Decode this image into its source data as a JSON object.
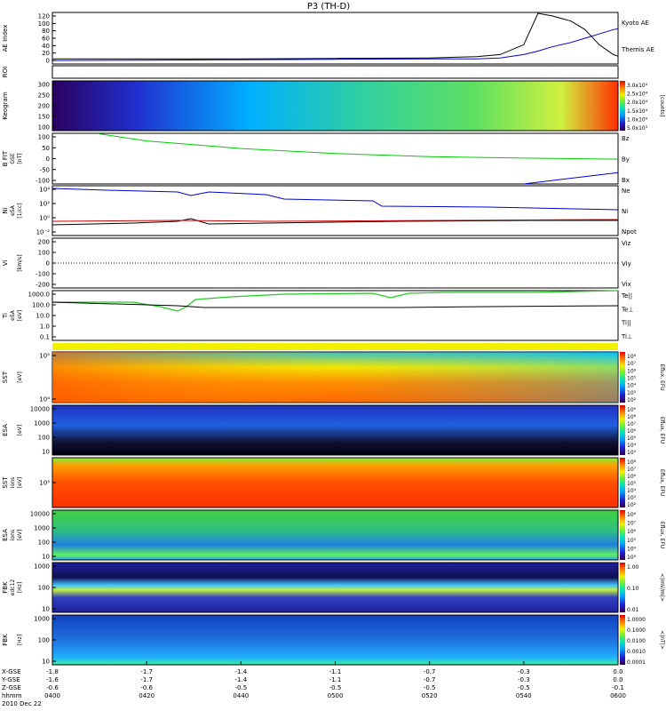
{
  "title": "P3 (TH-D)",
  "bottom_axis": {
    "rows": [
      {
        "label": "X-GSE",
        "values": [
          "-1.8",
          "-1.7",
          "-1.4",
          "-1.1",
          "-0.7",
          "-0.3",
          "0.0"
        ]
      },
      {
        "label": "Y-GSE",
        "values": [
          "-1.6",
          "-1.7",
          "-1.4",
          "-1.1",
          "-0.7",
          "-0.3",
          "0.0"
        ]
      },
      {
        "label": "Z-GSE",
        "values": [
          "-0.6",
          "-0.6",
          "-0.5",
          "-0.5",
          "-0.5",
          "-0.5",
          "-0.1"
        ]
      },
      {
        "label": "hhmm",
        "values": [
          "0400",
          "0420",
          "0440",
          "0500",
          "0520",
          "0540",
          "0600"
        ]
      }
    ],
    "date": "2010 Dec 22"
  },
  "chart_data": [
    {
      "type": "line",
      "id": "ae",
      "ylabel": "AE Index",
      "ylim": [
        0,
        120
      ],
      "yticks": [
        "120",
        "100",
        "80",
        "60",
        "40",
        "20",
        "0"
      ],
      "x": [
        0,
        20,
        40,
        60,
        80,
        90,
        95,
        100,
        103,
        106,
        110,
        113,
        116,
        119,
        120
      ],
      "series": [
        {
          "name": "Kyoto AE",
          "color": "#0000cc",
          "values": [
            8,
            9,
            10,
            11,
            12,
            12,
            14,
            22,
            30,
            40,
            50,
            60,
            70,
            80,
            82
          ]
        },
        {
          "name": "Themis AE",
          "color": "#000000",
          "values": [
            12,
            12,
            12,
            13,
            14,
            17,
            22,
            45,
            118,
            112,
            100,
            80,
            45,
            22,
            18
          ]
        }
      ]
    },
    {
      "type": "heatmap",
      "id": "roi",
      "ylabel": "ROI"
    },
    {
      "type": "heatmap",
      "id": "keogram",
      "ylabel": "Keogram",
      "yticks": [
        "300",
        "250",
        "200",
        "150",
        "100"
      ],
      "colorbar": {
        "label": "[counts]",
        "ticks": [
          "3.0x10⁴",
          "2.5x10⁴",
          "2.0x10⁴",
          "1.5x10⁴",
          "1.0x10⁴",
          "5.0x10³"
        ]
      }
    },
    {
      "type": "line",
      "id": "bfit",
      "ylabel": "B FIT",
      "ylabel2": "GSE",
      "units": "[nT]",
      "ylim": [
        -100,
        100
      ],
      "yticks": [
        "100",
        "50",
        "0",
        "-50",
        "-100"
      ],
      "x": [
        0,
        10,
        20,
        40,
        60,
        80,
        100,
        120
      ],
      "series": [
        {
          "name": "Bz",
          "color": "#cc0000",
          "values": [
            null,
            null,
            null,
            null,
            null,
            null,
            null,
            null
          ]
        },
        {
          "name": "By",
          "color": "#00cc00",
          "values": [
            null,
            98,
            70,
            40,
            20,
            8,
            2,
            -2
          ]
        },
        {
          "name": "Bx",
          "color": "#0000cc",
          "values": [
            null,
            null,
            null,
            null,
            null,
            null,
            -100,
            -55
          ]
        }
      ]
    },
    {
      "type": "line",
      "id": "ni",
      "ylabel": "Ni",
      "ylabel2": "eSA",
      "units": "[1/cc]",
      "yticks": [
        "10⁴",
        "10²",
        "10⁰",
        "10⁻²"
      ],
      "series": [
        {
          "name": "Ne",
          "color": "#cc0000"
        },
        {
          "name": "Ni",
          "color": "#000000"
        },
        {
          "name": "Npot",
          "color": "#0000cc"
        }
      ]
    },
    {
      "type": "line",
      "id": "vi",
      "ylabel": "Vi",
      "units": "[km/s]",
      "yticks": [
        "200",
        "100",
        "0",
        "-100",
        "-200"
      ],
      "series": [
        {
          "name": "Viz",
          "color": "#cc0000"
        },
        {
          "name": "Viy",
          "color": "#00cc00"
        },
        {
          "name": "Vix",
          "color": "#0000cc"
        }
      ]
    },
    {
      "type": "line",
      "id": "ti",
      "ylabel": "Ti",
      "ylabel2": "eSA",
      "units": "[eV]",
      "yticks": [
        "1000.0",
        "100.0",
        "10.0",
        "1.0",
        "0.1"
      ],
      "series": [
        {
          "name": "Te||",
          "color": "#000000"
        },
        {
          "name": "Te⊥",
          "color": "#cc0000"
        },
        {
          "name": "Ti||",
          "color": "#00cc00"
        },
        {
          "name": "Ti⊥",
          "color": "#0000cc"
        }
      ]
    },
    {
      "type": "heatmap",
      "id": "sst_e",
      "ylabel": "SST",
      "ylabel2": "",
      "units": "[eV]",
      "yticks": [
        "10⁵",
        "10⁴"
      ],
      "colorbar": {
        "label": "Eflux, EFU",
        "ticks": [
          "10⁸",
          "10⁷",
          "10⁶",
          "10⁵",
          "10⁴",
          "10³",
          "10²"
        ]
      }
    },
    {
      "type": "heatmap",
      "id": "esa_e",
      "ylabel": "ESA",
      "ylabel2": "",
      "units": "[eV]",
      "yticks": [
        "10000",
        "1000",
        "100",
        "10"
      ],
      "colorbar": {
        "label": "Eflux, EFU",
        "ticks": [
          "10⁹",
          "10⁸",
          "10⁷",
          "10⁶",
          "10⁵",
          "10⁴",
          "10³"
        ]
      }
    },
    {
      "type": "heatmap",
      "id": "sst_i",
      "ylabel": "SST",
      "ylabel2": "ions",
      "units": "[eV]",
      "yticks": [
        "10⁵"
      ],
      "colorbar": {
        "label": "Eflux, EFU",
        "ticks": [
          "10⁸",
          "10⁷",
          "10⁶",
          "10⁵",
          "10⁴",
          "10³",
          "10²"
        ]
      }
    },
    {
      "type": "heatmap",
      "id": "esa_i",
      "ylabel": "ESA",
      "ylabel2": "ions",
      "units": "[eV]",
      "yticks": [
        "10000",
        "1000",
        "100",
        "10"
      ],
      "colorbar": {
        "label": "Eflux, EFU",
        "ticks": [
          "10⁸",
          "10⁷",
          "10⁶",
          "10⁵",
          "10⁴",
          "10³"
        ]
      }
    },
    {
      "type": "heatmap",
      "id": "fbk_e",
      "ylabel": "FBK",
      "ylabel2": "edc12",
      "units": "[Hz]",
      "yticks": [
        "1000",
        "100",
        "10"
      ],
      "colorbar": {
        "label": "<|mV/m|>",
        "ticks": [
          "1.00",
          "0.10",
          "0.01"
        ]
      }
    },
    {
      "type": "heatmap",
      "id": "fbk_b",
      "ylabel": "FBK",
      "ylabel2": "",
      "units": "[Hz]",
      "yticks": [
        "1000",
        "100",
        "10"
      ],
      "colorbar": {
        "label": "<|nT|>",
        "ticks": [
          "1.0000",
          "0.1000",
          "0.0100",
          "0.0010",
          "0.0001"
        ]
      }
    }
  ]
}
